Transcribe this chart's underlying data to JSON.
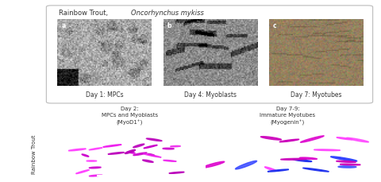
{
  "title_normal": "Rainbow Trout, ",
  "title_italic": "Oncorhynchus mykiss",
  "panel_labels": [
    "a",
    "b",
    "c"
  ],
  "panel_captions": [
    "Day 1: MPCs",
    "Day 4: Myoblasts",
    "Day 7: Myotubes"
  ],
  "bottom_col1_title": "Day 2:\nMPCs and Myoblasts\n(MyoD1⁺)",
  "bottom_col2_title": "Day 7-9:\nImmature Myotubes\n(Myogenin⁺)",
  "y_label": "Rainbow Trout",
  "bg_color": "#ffffff",
  "text_color": "#333333",
  "fl1_bg": "#06000f",
  "fl2_bg": "#04000e",
  "fl1_cell_colors": [
    "#dd00dd",
    "#ee22ee",
    "#ff44ff",
    "#cc00cc",
    "#bb00bb"
  ],
  "fl2_cell_colors_pink": [
    "#dd00cc",
    "#ee22ee",
    "#ff44ff",
    "#cc00bb"
  ],
  "fl2_cell_colors_blue": [
    "#3344ff",
    "#4455ff",
    "#2233ee",
    "#5566ff"
  ],
  "scale_bar_color": "#ffffff"
}
